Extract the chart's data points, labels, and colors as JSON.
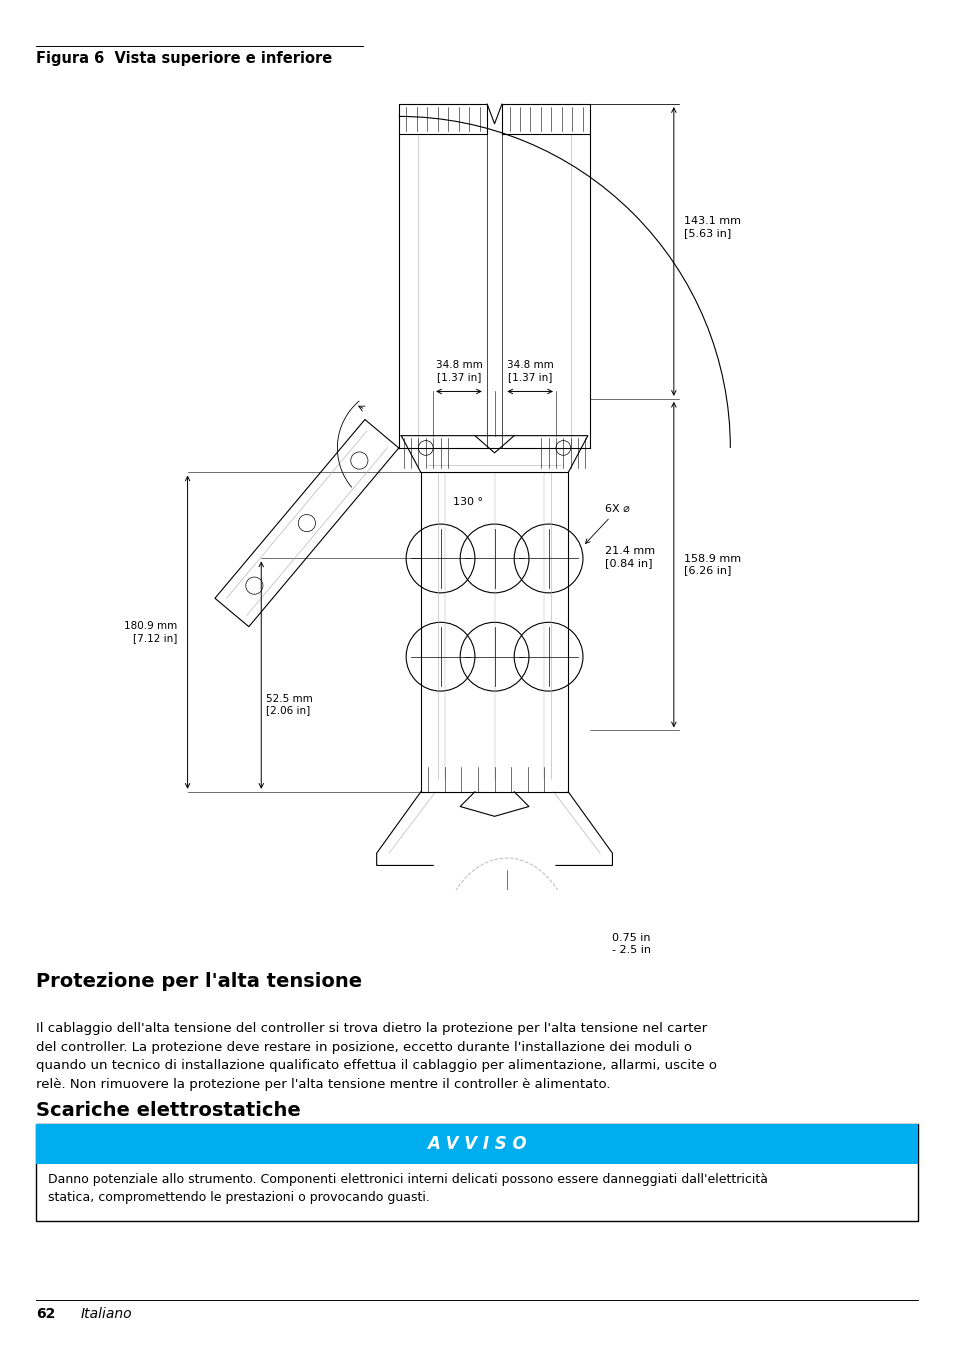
{
  "bg_color": "#ffffff",
  "fig_label_text": "Figura 6  Vista superiore e inferiore",
  "section1_title": "Protezione per l'alta tensione",
  "section1_body": "Il cablaggio dell'alta tensione del controller si trova dietro la protezione per l'alta tensione nel carter\ndel controller. La protezione deve restare in posizione, eccetto durante l'installazione dei moduli o\nquando un tecnico di installazione qualificato effettua il cablaggio per alimentazione, allarmi, uscite o\nrelè. Non rimuovere la protezione per l'alta tensione mentre il controller è alimentato.",
  "section2_title": "Scariche elettrostatiche",
  "avviso_header_color": "#00aeef",
  "avviso_text": "A V V I S O",
  "avviso_body": "Danno potenziale allo strumento. Componenti elettronici interni delicati possono essere danneggiati dall'elettricità\nstatica, compromettendo le prestazioni o provocando guasti.",
  "footer_text": "62",
  "footer_italic": "Italiano"
}
